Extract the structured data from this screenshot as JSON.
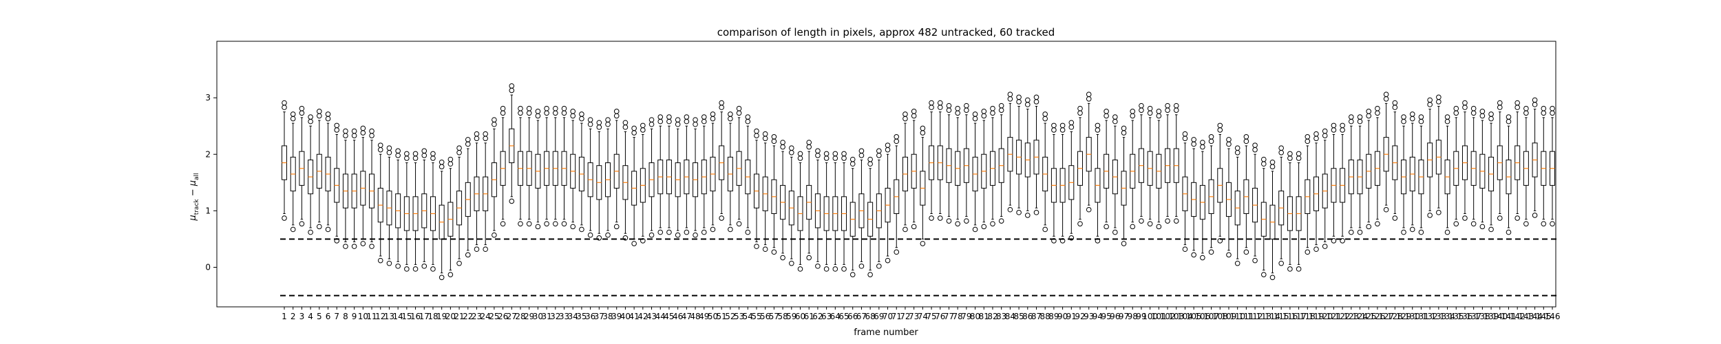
{
  "chart_data": {
    "type": "boxplot",
    "title": "comparison of length in pixels, approx 482 untracked, 60 tracked",
    "xlabel": "frame number",
    "ylabel": "μtrack − μall",
    "ylabel_parts": {
      "mu": "μ",
      "track": "track",
      "minus": " − ",
      "all": "all"
    },
    "ylim": [
      -0.7,
      4.0
    ],
    "yticks": [
      0,
      1,
      2,
      3
    ],
    "categories": [
      "1",
      "2",
      "3",
      "4",
      "5",
      "6",
      "7",
      "8",
      "9",
      "10",
      "11",
      "12",
      "13",
      "14",
      "15",
      "16",
      "17",
      "18",
      "19",
      "20",
      "21",
      "22",
      "23",
      "24",
      "25",
      "26",
      "27",
      "28",
      "29",
      "30",
      "31",
      "32",
      "33",
      "34",
      "35",
      "36",
      "37",
      "38",
      "39",
      "40",
      "41",
      "42",
      "43",
      "44",
      "45",
      "46",
      "47",
      "48",
      "49",
      "50",
      "51",
      "52",
      "53",
      "54",
      "55",
      "56",
      "57",
      "58",
      "59",
      "60",
      "61",
      "62",
      "63",
      "64",
      "65",
      "66",
      "67",
      "68",
      "69",
      "70",
      "71",
      "72",
      "73",
      "74",
      "75",
      "76",
      "77",
      "78",
      "79",
      "80",
      "81",
      "82",
      "83",
      "84",
      "85",
      "86",
      "87",
      "88",
      "89",
      "90",
      "91",
      "92",
      "93",
      "94",
      "95",
      "96",
      "97",
      "98",
      "99",
      "100",
      "101",
      "102",
      "103",
      "104",
      "105",
      "106",
      "107",
      "108",
      "109",
      "110",
      "111",
      "112",
      "113",
      "114",
      "115",
      "116",
      "117",
      "118",
      "119",
      "120",
      "121",
      "122",
      "123",
      "124",
      "125",
      "126",
      "127",
      "128",
      "129",
      "130",
      "131",
      "132",
      "133",
      "134",
      "135",
      "136",
      "137",
      "138",
      "139",
      "140",
      "141",
      "142",
      "143",
      "144",
      "145",
      "146"
    ],
    "medians": [
      1.85,
      1.65,
      1.75,
      1.6,
      1.7,
      1.65,
      1.45,
      1.35,
      1.35,
      1.4,
      1.35,
      1.1,
      1.05,
      1.0,
      0.95,
      0.95,
      1.0,
      0.95,
      0.8,
      0.85,
      1.05,
      1.2,
      1.3,
      1.3,
      1.55,
      1.75,
      2.15,
      1.75,
      1.75,
      1.7,
      1.75,
      1.75,
      1.75,
      1.7,
      1.65,
      1.55,
      1.5,
      1.55,
      1.7,
      1.5,
      1.4,
      1.45,
      1.55,
      1.6,
      1.6,
      1.55,
      1.6,
      1.55,
      1.6,
      1.65,
      1.85,
      1.65,
      1.75,
      1.6,
      1.35,
      1.3,
      1.25,
      1.15,
      1.05,
      0.95,
      1.15,
      1.0,
      0.95,
      0.95,
      0.95,
      0.85,
      1.0,
      0.85,
      1.0,
      1.1,
      1.25,
      1.65,
      1.7,
      1.4,
      1.85,
      1.85,
      1.8,
      1.75,
      1.8,
      1.65,
      1.7,
      1.75,
      1.8,
      2.0,
      1.95,
      1.9,
      1.95,
      1.65,
      1.45,
      1.45,
      1.5,
      1.75,
      2.0,
      1.45,
      1.7,
      1.6,
      1.4,
      1.7,
      1.8,
      1.75,
      1.7,
      1.8,
      1.8,
      1.3,
      1.2,
      1.15,
      1.25,
      1.45,
      1.2,
      1.05,
      1.25,
      1.1,
      0.85,
      0.8,
      1.05,
      0.95,
      0.95,
      1.25,
      1.3,
      1.35,
      1.45,
      1.45,
      1.6,
      1.6,
      1.7,
      1.75,
      2.0,
      1.85,
      1.6,
      1.65,
      1.6,
      1.9,
      1.95,
      1.6,
      1.75,
      1.85,
      1.75,
      1.7,
      1.65,
      1.85,
      1.6,
      1.85,
      1.75,
      1.9,
      1.75,
      1.75
    ],
    "spread": [
      0.3,
      0.3,
      0.3,
      0.3,
      0.3,
      0.3,
      0.3,
      0.3,
      0.3,
      0.3,
      0.3,
      0.3,
      0.3,
      0.3,
      0.3,
      0.3,
      0.3,
      0.3,
      0.3,
      0.3,
      0.3,
      0.3,
      0.3,
      0.3,
      0.3,
      0.3,
      0.3,
      0.3,
      0.3,
      0.3,
      0.3,
      0.3,
      0.3,
      0.3,
      0.3,
      0.3,
      0.3,
      0.3,
      0.3,
      0.3,
      0.3,
      0.3,
      0.3,
      0.3,
      0.3,
      0.3,
      0.3,
      0.3,
      0.3,
      0.3,
      0.3,
      0.3,
      0.3,
      0.3,
      0.3,
      0.3,
      0.3,
      0.3,
      0.3,
      0.3,
      0.3,
      0.3,
      0.3,
      0.3,
      0.3,
      0.3,
      0.3,
      0.3,
      0.3,
      0.3,
      0.3,
      0.3,
      0.3,
      0.3,
      0.3,
      0.3,
      0.3,
      0.3,
      0.3,
      0.3,
      0.3,
      0.3,
      0.3,
      0.3,
      0.3,
      0.3,
      0.3,
      0.3,
      0.3,
      0.3,
      0.3,
      0.3,
      0.3,
      0.3,
      0.3,
      0.3,
      0.3,
      0.3,
      0.3,
      0.3,
      0.3,
      0.3,
      0.3,
      0.3,
      0.3,
      0.3,
      0.3,
      0.3,
      0.3,
      0.3,
      0.3,
      0.3,
      0.3,
      0.3,
      0.3,
      0.3,
      0.3,
      0.3,
      0.3,
      0.3,
      0.3,
      0.3,
      0.3,
      0.3,
      0.3,
      0.3,
      0.3,
      0.3,
      0.3,
      0.3,
      0.3,
      0.3,
      0.3,
      0.3,
      0.3,
      0.3,
      0.3,
      0.3,
      0.3,
      0.3,
      0.3,
      0.3,
      0.3,
      0.3,
      0.3,
      0.3
    ],
    "reference_lines": [
      0.5,
      -0.5
    ],
    "colors": {
      "median": "#ff7f0e",
      "box": "#000000",
      "reference": "#000000"
    },
    "grid": false
  }
}
